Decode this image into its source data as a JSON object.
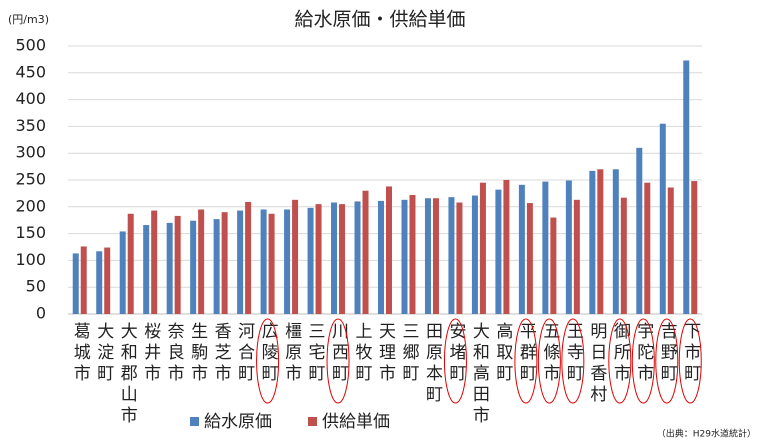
{
  "chart_data": {
    "type": "bar",
    "title": "給水原価・供給単価",
    "y_unit": "(円/m3)",
    "source": "（出典：H29水道統計）",
    "categories": [
      "葛城市",
      "大淀町",
      "大和郡山市",
      "桜井市",
      "奈良市",
      "生駒市",
      "香芝市",
      "河合町",
      "広陵町",
      "橿原市",
      "三宅町",
      "川西町",
      "上牧町",
      "天理市",
      "三郷町",
      "田原本町",
      "安堵町",
      "大和高田市",
      "高取町",
      "平群町",
      "五條市",
      "王寺町",
      "明日香村",
      "御所市",
      "宇陀市",
      "吉野町",
      "下市町"
    ],
    "circled": [
      false,
      false,
      false,
      false,
      false,
      false,
      false,
      false,
      true,
      false,
      false,
      true,
      false,
      false,
      false,
      false,
      true,
      false,
      false,
      true,
      true,
      true,
      false,
      true,
      true,
      true,
      true
    ],
    "series": [
      {
        "name": "給水原価",
        "color": "#4f81bd",
        "values": [
          113,
          117,
          154,
          166,
          170,
          174,
          177,
          193,
          195,
          195,
          198,
          208,
          210,
          211,
          213,
          216,
          218,
          221,
          232,
          241,
          247,
          249,
          267,
          270,
          310,
          355,
          473
        ]
      },
      {
        "name": "供給単価",
        "color": "#c0504d",
        "values": [
          126,
          124,
          187,
          193,
          183,
          195,
          190,
          209,
          187,
          213,
          205,
          205,
          230,
          238,
          222,
          216,
          208,
          245,
          250,
          207,
          180,
          213,
          270,
          217,
          245,
          236,
          248
        ]
      }
    ],
    "ylim": [
      0,
      500
    ],
    "yticks": [
      0,
      50,
      100,
      150,
      200,
      250,
      300,
      350,
      400,
      450,
      500
    ],
    "grid": true,
    "circle_color": "#e00000"
  }
}
